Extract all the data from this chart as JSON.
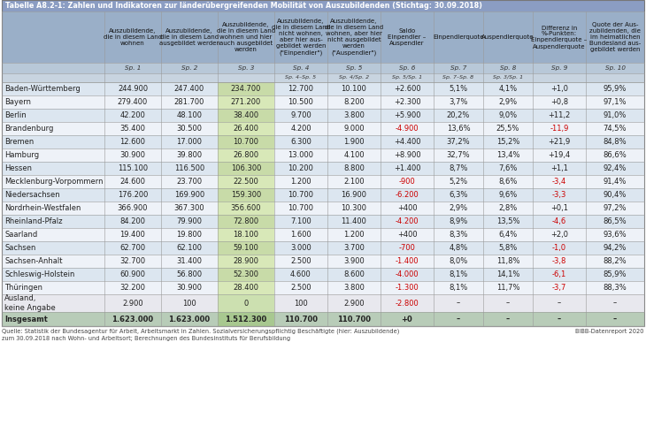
{
  "title": "Tabelle A8.2-1: Zahlen und Indikatoren zur länderübergreifenden Mobilität von Auszubildenden (Stichtag: 30.09.2018)",
  "col_headers": [
    "Auszubildende,\ndie in diesem Land\nwohnen",
    "Auszubildende,\ndie in diesem Land\nausgebildet werden",
    "Auszubildende,\ndie in diesem Land\nwohnen und hier\nauch ausgebildet\nwerden",
    "Auszubildende,\ndie in diesem Land\nnicht wohnen,\naber hier aus-\ngebildet werden\n(\"Einpendler\")",
    "Auszubildende,\ndie in diesem Land\nwohnen, aber hier\nnicht ausgebildet\nwerden\n(\"Auspendler\")",
    "Saldo\nEinpendler –\nAuspendler",
    "Einpendlerquote",
    "Auspendlerquote",
    "Differenz in\n%-Punkten:\nEinpendlerquote –\nAuspendlerquote",
    "Quote der Aus-\nzubildenden, die\nim heimatlichen\nBundesland aus-\ngebildet werden"
  ],
  "col_subheaders1": [
    "Sp. 1",
    "Sp. 2",
    "Sp. 3",
    "Sp. 4",
    "Sp. 5",
    "Sp. 6",
    "Sp. 7",
    "Sp. 8",
    "Sp. 9",
    "Sp. 10"
  ],
  "col_subheaders2": [
    "",
    "",
    "",
    "Sp. 4–Sp. 5",
    "Sp. 4/Sp. 2",
    "Sp. 5/Sp. 1",
    "Sp. 7–Sp. 8",
    "Sp. 3/Sp. 1",
    "",
    ""
  ],
  "rows": [
    [
      "Baden-Württemberg",
      "244.900",
      "247.400",
      "234.700",
      "12.700",
      "10.100",
      "+2.600",
      "5,1%",
      "4,1%",
      "+1,0",
      "95,9%"
    ],
    [
      "Bayern",
      "279.400",
      "281.700",
      "271.200",
      "10.500",
      "8.200",
      "+2.300",
      "3,7%",
      "2,9%",
      "+0,8",
      "97,1%"
    ],
    [
      "Berlin",
      "42.200",
      "48.100",
      "38.400",
      "9.700",
      "3.800",
      "+5.900",
      "20,2%",
      "9,0%",
      "+11,2",
      "91,0%"
    ],
    [
      "Brandenburg",
      "35.400",
      "30.500",
      "26.400",
      "4.200",
      "9.000",
      "-4.900",
      "13,6%",
      "25,5%",
      "-11,9",
      "74,5%"
    ],
    [
      "Bremen",
      "12.600",
      "17.000",
      "10.700",
      "6.300",
      "1.900",
      "+4.400",
      "37,2%",
      "15,2%",
      "+21,9",
      "84,8%"
    ],
    [
      "Hamburg",
      "30.900",
      "39.800",
      "26.800",
      "13.000",
      "4.100",
      "+8.900",
      "32,7%",
      "13,4%",
      "+19,4",
      "86,6%"
    ],
    [
      "Hessen",
      "115.100",
      "116.500",
      "106.300",
      "10.200",
      "8.800",
      "+1.400",
      "8,7%",
      "7,6%",
      "+1,1",
      "92,4%"
    ],
    [
      "Mecklenburg-Vorpommern",
      "24.600",
      "23.700",
      "22.500",
      "1.200",
      "2.100",
      "-900",
      "5,2%",
      "8,6%",
      "-3,4",
      "91,4%"
    ],
    [
      "Niedersachsen",
      "176.200",
      "169.900",
      "159.300",
      "10.700",
      "16.900",
      "-6.200",
      "6,3%",
      "9,6%",
      "-3,3",
      "90,4%"
    ],
    [
      "Nordrhein-Westfalen",
      "366.900",
      "367.300",
      "356.600",
      "10.700",
      "10.300",
      "+400",
      "2,9%",
      "2,8%",
      "+0,1",
      "97,2%"
    ],
    [
      "Rheinland-Pfalz",
      "84.200",
      "79.900",
      "72.800",
      "7.100",
      "11.400",
      "-4.200",
      "8,9%",
      "13,5%",
      "-4,6",
      "86,5%"
    ],
    [
      "Saarland",
      "19.400",
      "19.800",
      "18.100",
      "1.600",
      "1.200",
      "+400",
      "8,3%",
      "6,4%",
      "+2,0",
      "93,6%"
    ],
    [
      "Sachsen",
      "62.700",
      "62.100",
      "59.100",
      "3.000",
      "3.700",
      "-700",
      "4,8%",
      "5,8%",
      "-1,0",
      "94,2%"
    ],
    [
      "Sachsen-Anhalt",
      "32.700",
      "31.400",
      "28.900",
      "2.500",
      "3.900",
      "-1.400",
      "8,0%",
      "11,8%",
      "-3,8",
      "88,2%"
    ],
    [
      "Schleswig-Holstein",
      "60.900",
      "56.800",
      "52.300",
      "4.600",
      "8.600",
      "-4.000",
      "8,1%",
      "14,1%",
      "-6,1",
      "85,9%"
    ],
    [
      "Thüringen",
      "32.200",
      "30.900",
      "28.400",
      "2.500",
      "3.800",
      "-1.300",
      "8,1%",
      "11,7%",
      "-3,7",
      "88,3%"
    ],
    [
      "Ausland,\nkeine Angabe",
      "2.900",
      "100",
      "0",
      "100",
      "2.900",
      "-2.800",
      "–",
      "–",
      "–",
      "–"
    ],
    [
      "Insgesamt",
      "1.623.000",
      "1.623.000",
      "1.512.300",
      "110.700",
      "110.700",
      "+0",
      "–",
      "–",
      "–",
      "–"
    ]
  ],
  "footer": "Quelle: Statistik der Bundesagentur für Arbeit, Arbeitsmarkt in Zahlen. Sozialversicherungspflichtig Beschäftigte (hier: Auszubildende)\nzum 30.09.2018 nach Wohn- und Arbeitsort; Berechnungen des Bundesinstituts für Berufsbildung",
  "footer_right": "BIBB-Datenreport 2020",
  "title_bg": "#8b9dc3",
  "header_bg": "#9aafc8",
  "subheader_bg": "#b8c8d8",
  "subheader2_bg": "#c8d4e0",
  "col3_even_bg": "#c8dba8",
  "col3_odd_bg": "#d8e8b8",
  "col3_last_bg": "#a8c890",
  "col3_ausland_bg": "#cce0b0",
  "row_even_bg": "#dce6f0",
  "row_odd_bg": "#eef2f8",
  "row_ausland_bg": "#e8e8ee",
  "row_last_bg": "#b8ccb8",
  "negative_color": "#cc0000",
  "text_color": "#222222",
  "footer_color": "#444444"
}
